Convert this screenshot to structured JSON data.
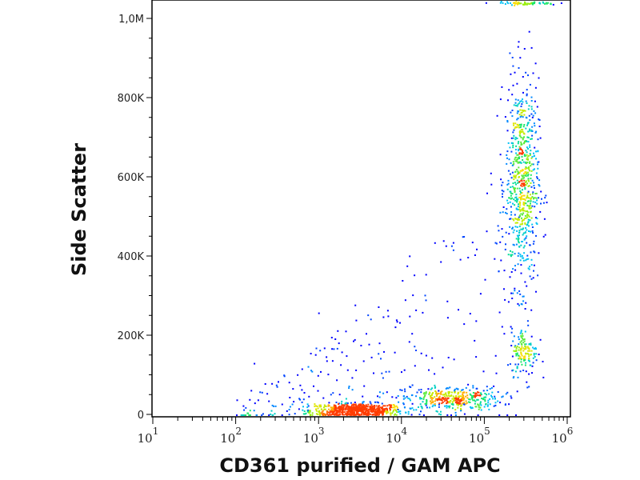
{
  "chart_data": {
    "type": "scatter",
    "title": "",
    "xlabel": "CD361 purified / GAM APC",
    "ylabel": "Side Scatter",
    "xscale": "log",
    "xlim": [
      10,
      1100000
    ],
    "ylim": [
      -5000,
      1050000
    ],
    "x_ticks": [
      {
        "base": "10",
        "exp": "1",
        "value": 10
      },
      {
        "base": "10",
        "exp": "2",
        "value": 100
      },
      {
        "base": "10",
        "exp": "3",
        "value": 1000
      },
      {
        "base": "10",
        "exp": "4",
        "value": 10000
      },
      {
        "base": "10",
        "exp": "5",
        "value": 100000
      },
      {
        "base": "10",
        "exp": "6",
        "value": 1000000
      }
    ],
    "y_ticks": [
      {
        "label": "0",
        "value": 0
      },
      {
        "label": "200K",
        "value": 200000
      },
      {
        "label": "400K",
        "value": 400000
      },
      {
        "label": "600K",
        "value": 600000
      },
      {
        "label": "800K",
        "value": 800000
      },
      {
        "label": "1,0M",
        "value": 1000000
      }
    ],
    "grid": false,
    "coloring": "density (blue-cyan-green-yellow-red)",
    "populations": [
      {
        "name": "CD361-negative low SSC",
        "x_center": 2800,
        "x_log_sd": 0.28,
        "y_center": 12000,
        "y_sd": 9000,
        "n": 650
      },
      {
        "name": "CD361-dim low SSC",
        "x_center": 40000,
        "x_log_sd": 0.3,
        "y_center": 42000,
        "y_sd": 15000,
        "n": 380
      },
      {
        "name": "CD361-positive high SSC",
        "x_center": 280000,
        "x_log_sd": 0.1,
        "y_center": 590000,
        "y_sd": 130000,
        "n": 700
      },
      {
        "name": "CD361-positive mid SSC",
        "x_center": 300000,
        "x_log_sd": 0.08,
        "y_center": 160000,
        "y_sd": 30000,
        "n": 140
      },
      {
        "name": "SSC saturated events",
        "x_center": 300000,
        "x_log_sd": 0.2,
        "y_center": 1040000,
        "y_sd": 2000,
        "n": 60
      }
    ]
  }
}
